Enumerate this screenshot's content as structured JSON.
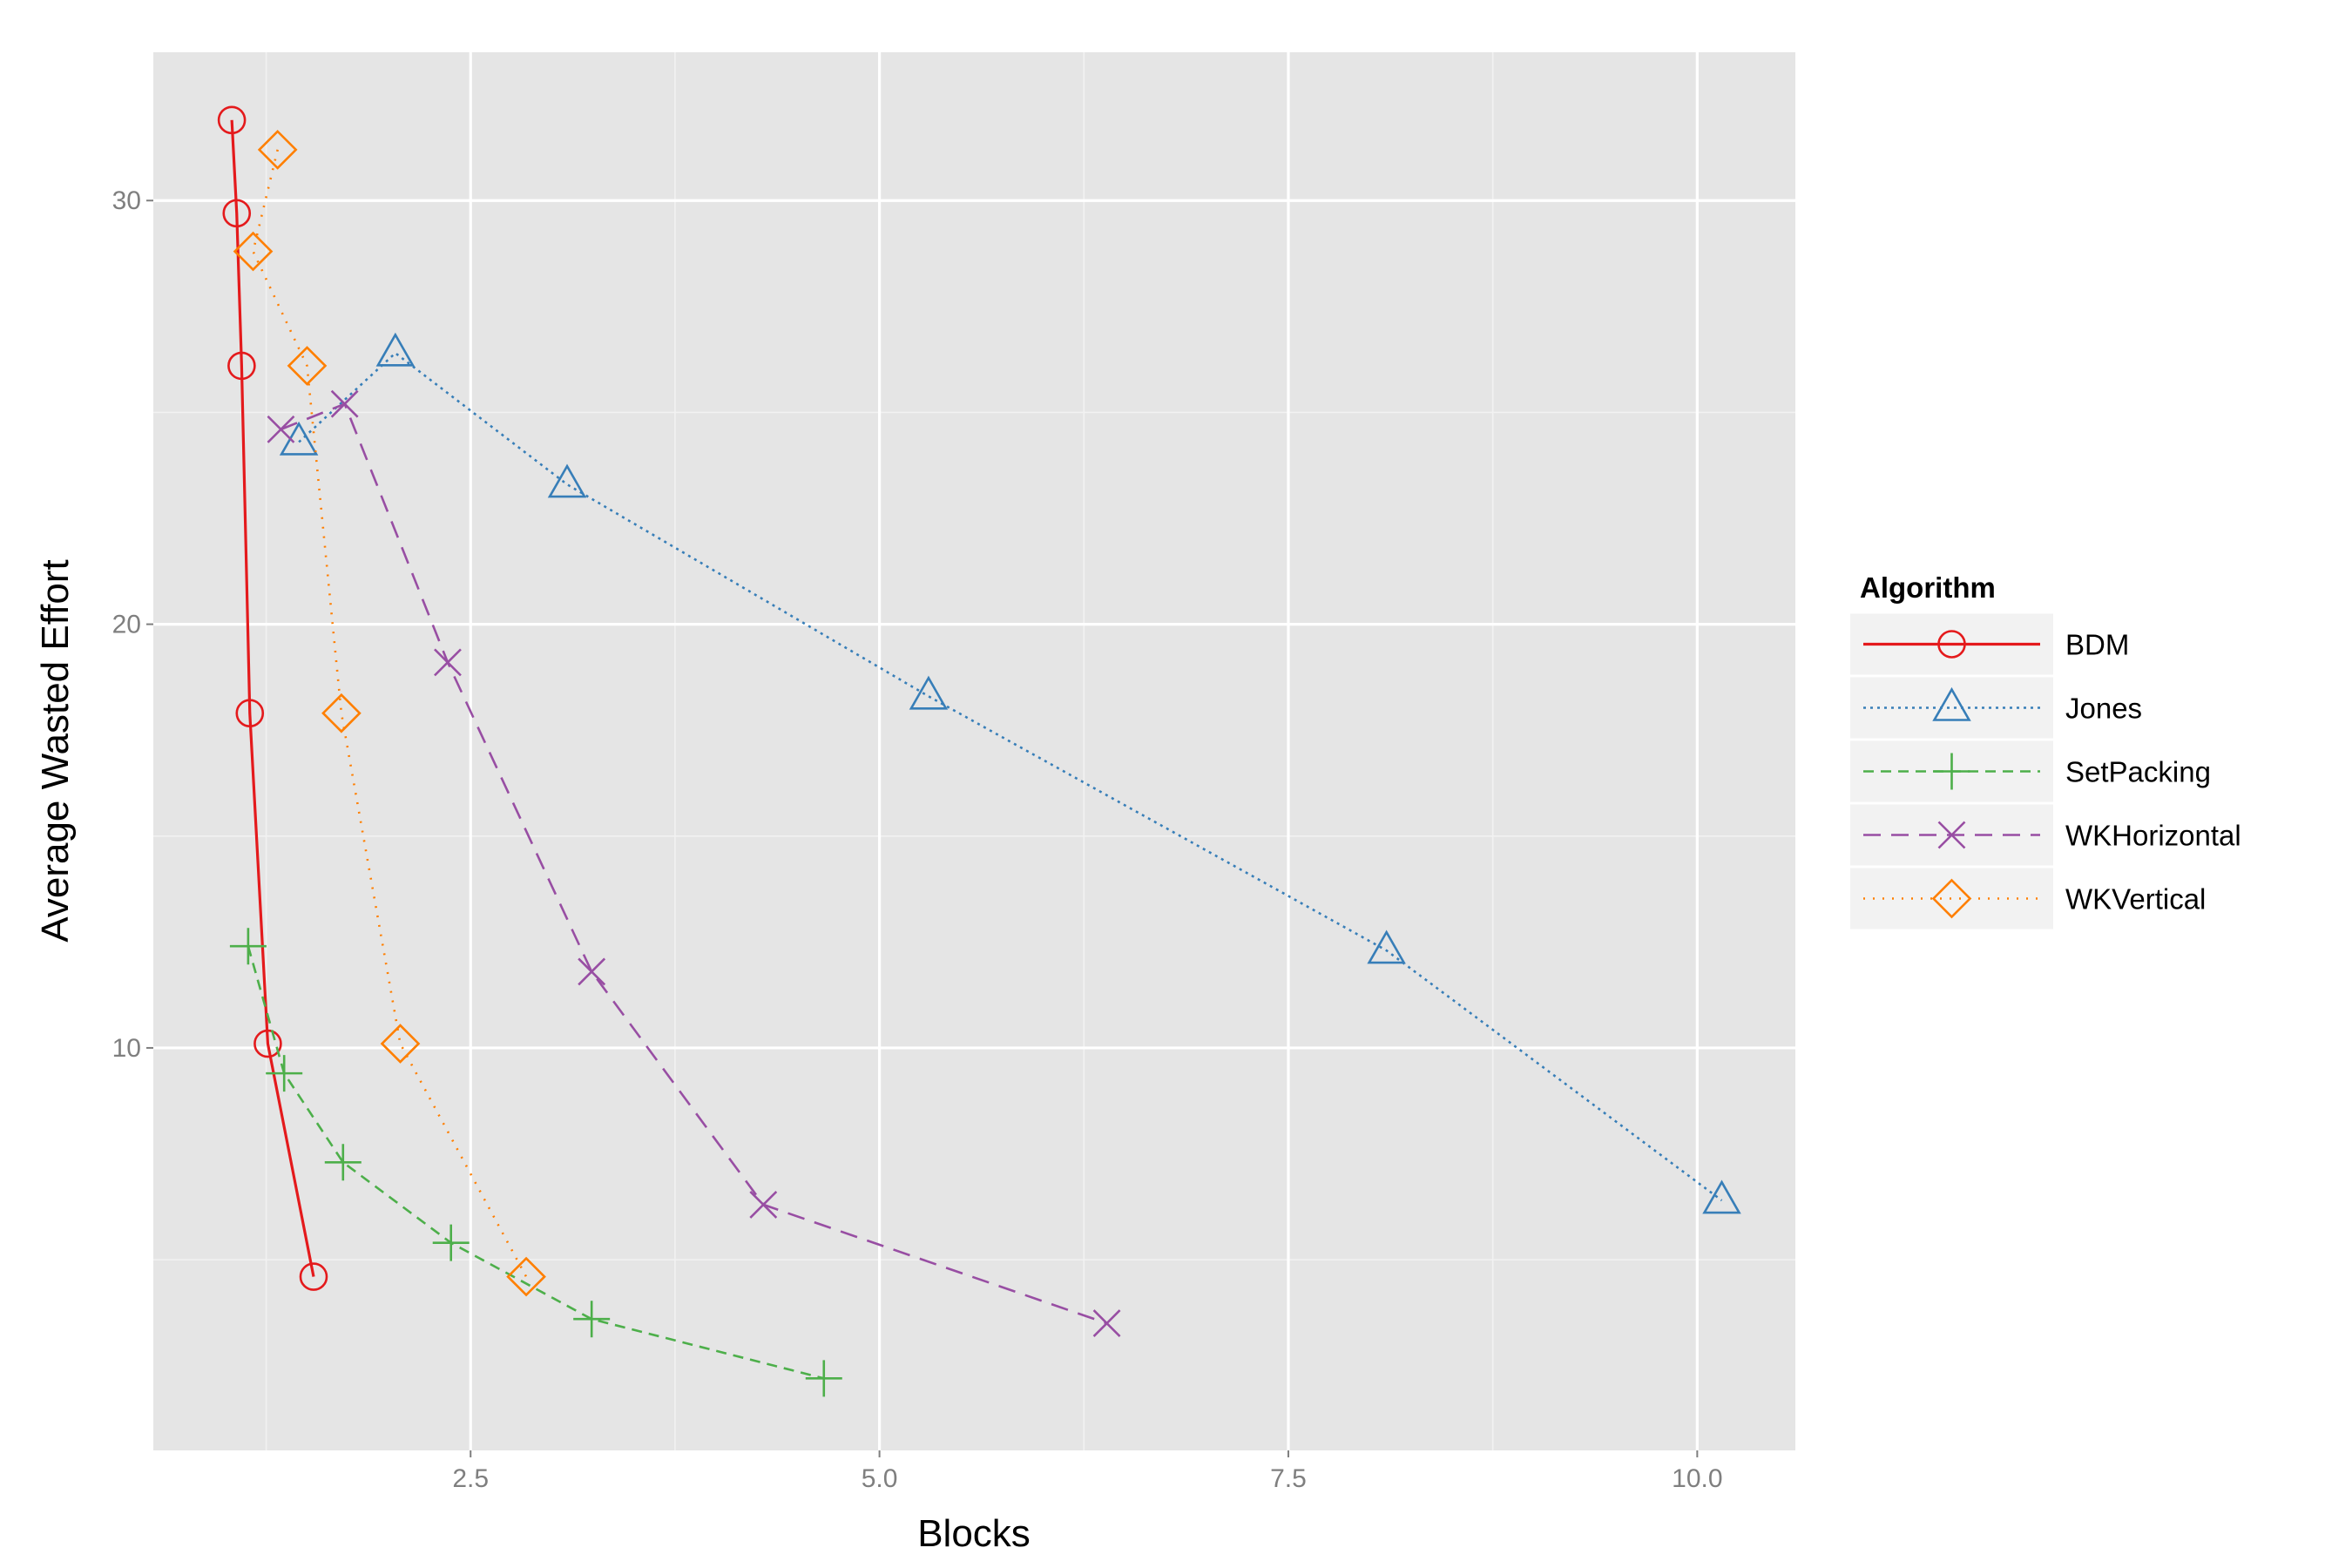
{
  "chart_data": {
    "type": "line",
    "xlabel": "Blocks",
    "ylabel": "Average Wasted Effort",
    "xlim": [
      0.56,
      10.6
    ],
    "ylim": [
      0.5,
      33.5
    ],
    "x_ticks": [
      2.5,
      5.0,
      7.5,
      10.0
    ],
    "x_tick_labels": [
      "2.5",
      "5.0",
      "7.5",
      "10.0"
    ],
    "y_ticks": [
      10,
      20,
      30
    ],
    "y_tick_labels": [
      "10",
      "20",
      "30"
    ],
    "grid": true,
    "legend": {
      "title": "Algorithm",
      "position": "right"
    },
    "series": [
      {
        "name": "BDM",
        "color": "#e41a1c",
        "linestyle": "solid",
        "marker": "circle",
        "x": [
          1.04,
          1.07,
          1.1,
          1.15,
          1.26,
          1.54
        ],
        "y": [
          31.9,
          29.7,
          26.1,
          17.9,
          10.1,
          4.6
        ]
      },
      {
        "name": "Jones",
        "color": "#377eb8",
        "linestyle": "dotted-fine",
        "marker": "triangle",
        "x": [
          1.45,
          2.04,
          3.09,
          5.3,
          8.1,
          10.15
        ],
        "y": [
          24.3,
          26.4,
          23.3,
          18.3,
          12.3,
          6.4
        ]
      },
      {
        "name": "SetPacking",
        "color": "#4daf4a",
        "linestyle": "dashed",
        "marker": "plus",
        "x": [
          1.14,
          1.36,
          1.72,
          2.38,
          3.24,
          4.66
        ],
        "y": [
          12.4,
          9.4,
          7.3,
          5.4,
          3.6,
          2.2
        ]
      },
      {
        "name": "WKHorizontal",
        "color": "#984ea3",
        "linestyle": "longdash",
        "marker": "cross",
        "x": [
          1.34,
          1.73,
          2.36,
          3.24,
          4.29,
          6.39
        ],
        "y": [
          24.6,
          25.2,
          19.1,
          11.8,
          6.3,
          3.5
        ]
      },
      {
        "name": "WKVertical",
        "color": "#ff7f00",
        "linestyle": "dotted",
        "marker": "diamond",
        "x": [
          1.32,
          1.17,
          1.5,
          1.71,
          2.07,
          2.84
        ],
        "y": [
          31.2,
          28.8,
          26.1,
          17.9,
          10.1,
          4.6
        ]
      }
    ]
  }
}
